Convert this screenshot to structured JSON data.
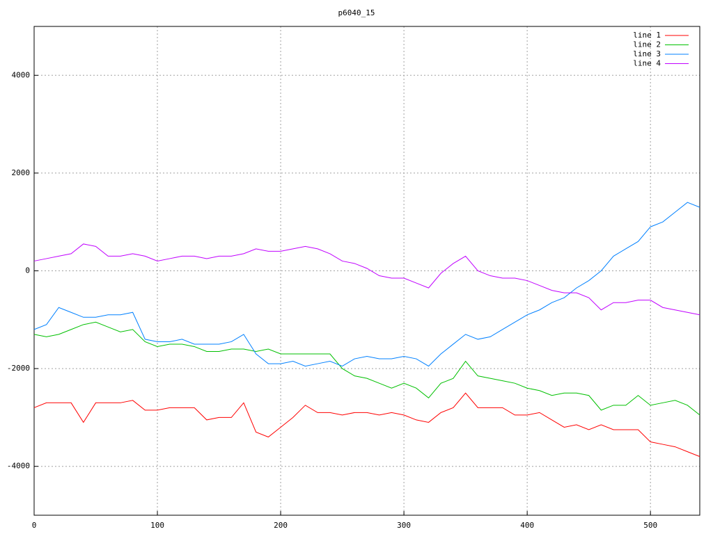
{
  "chart_data": {
    "type": "line",
    "title": "p6040_15",
    "x": [
      0,
      10,
      20,
      30,
      40,
      50,
      60,
      70,
      80,
      90,
      100,
      110,
      120,
      130,
      140,
      150,
      160,
      170,
      180,
      190,
      200,
      210,
      220,
      230,
      240,
      250,
      260,
      270,
      280,
      290,
      300,
      310,
      320,
      330,
      340,
      350,
      360,
      370,
      380,
      390,
      400,
      410,
      420,
      430,
      440,
      450,
      460,
      470,
      480,
      490,
      500,
      510,
      520,
      530,
      540
    ],
    "xlim": [
      0,
      540
    ],
    "xticks": [
      0,
      100,
      200,
      300,
      400,
      500
    ],
    "ylim": [
      -5000,
      5000
    ],
    "yticks": [
      -4000,
      -2000,
      0,
      2000,
      4000
    ],
    "grid": true,
    "legend": "top-right",
    "series": [
      {
        "name": "line 1",
        "color": "#ff0000",
        "values": [
          -2800,
          -2700,
          -2700,
          -2700,
          -3100,
          -2700,
          -2700,
          -2700,
          -2650,
          -2850,
          -2850,
          -2800,
          -2800,
          -2800,
          -3050,
          -3000,
          -3000,
          -2700,
          -3300,
          -3400,
          -3200,
          -3000,
          -2750,
          -2900,
          -2900,
          -2950,
          -2900,
          -2900,
          -2950,
          -2900,
          -2950,
          -3050,
          -3100,
          -2900,
          -2800,
          -2500,
          -2800,
          -2800,
          -2800,
          -2950,
          -2950,
          -2900,
          -3050,
          -3200,
          -3150,
          -3250,
          -3150,
          -3250,
          -3250,
          -3250,
          -3500,
          -3550,
          -3600,
          -3700,
          -3800
        ]
      },
      {
        "name": "line 2",
        "color": "#00c000",
        "values": [
          -1300,
          -1350,
          -1300,
          -1200,
          -1100,
          -1050,
          -1150,
          -1250,
          -1200,
          -1450,
          -1550,
          -1500,
          -1500,
          -1550,
          -1650,
          -1650,
          -1600,
          -1600,
          -1650,
          -1600,
          -1700,
          -1700,
          -1700,
          -1700,
          -1700,
          -2000,
          -2150,
          -2200,
          -2300,
          -2400,
          -2300,
          -2400,
          -2600,
          -2300,
          -2200,
          -1850,
          -2150,
          -2200,
          -2250,
          -2300,
          -2400,
          -2450,
          -2550,
          -2500,
          -2500,
          -2550,
          -2850,
          -2750,
          -2750,
          -2550,
          -2750,
          -2700,
          -2650,
          -2750,
          -2950
        ]
      },
      {
        "name": "line 3",
        "color": "#0080ff",
        "values": [
          -1200,
          -1100,
          -750,
          -850,
          -950,
          -950,
          -900,
          -900,
          -850,
          -1400,
          -1450,
          -1450,
          -1400,
          -1500,
          -1500,
          -1500,
          -1450,
          -1300,
          -1700,
          -1900,
          -1900,
          -1850,
          -1950,
          -1900,
          -1850,
          -1950,
          -1800,
          -1750,
          -1800,
          -1800,
          -1750,
          -1800,
          -1950,
          -1700,
          -1500,
          -1300,
          -1400,
          -1350,
          -1200,
          -1050,
          -900,
          -800,
          -650,
          -550,
          -350,
          -200,
          0,
          300,
          450,
          600,
          900,
          1000,
          1200,
          1400,
          1300
        ]
      },
      {
        "name": "line 4",
        "color": "#c000ff",
        "values": [
          200,
          250,
          300,
          350,
          550,
          500,
          300,
          300,
          350,
          300,
          200,
          250,
          300,
          300,
          250,
          300,
          300,
          350,
          450,
          400,
          400,
          450,
          500,
          450,
          350,
          200,
          150,
          50,
          -100,
          -150,
          -150,
          -250,
          -350,
          -50,
          150,
          300,
          0,
          -100,
          -150,
          -150,
          -200,
          -300,
          -400,
          -450,
          -450,
          -550,
          -800,
          -650,
          -650,
          -600,
          -600,
          -750,
          -800,
          -850,
          -900
        ]
      }
    ]
  }
}
